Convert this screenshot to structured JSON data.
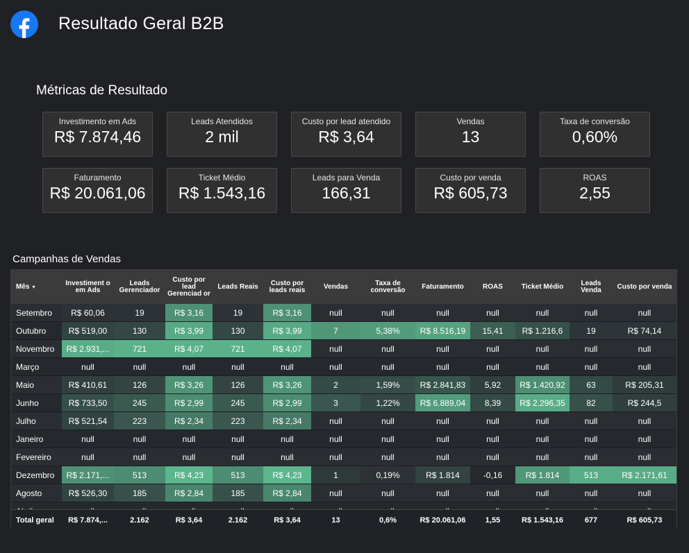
{
  "header": {
    "title": "Resultado Geral B2B",
    "logo_icon": "facebook-logo-icon"
  },
  "metrics": {
    "section_title": "Métricas de Resultado",
    "cards": [
      {
        "label": "Investimento em Ads",
        "value": "R$ 7.874,46"
      },
      {
        "label": "Leads Atendidos",
        "value": "2 mil"
      },
      {
        "label": "Custo por lead atendido",
        "value": "R$ 3,64"
      },
      {
        "label": "Vendas",
        "value": "13"
      },
      {
        "label": "Taxa de conversão",
        "value": "0,60%"
      },
      {
        "label": "Faturamento",
        "value": "R$ 20.061,06"
      },
      {
        "label": "Ticket Médio",
        "value": "R$ 1.543,16"
      },
      {
        "label": "Leads para Venda",
        "value": "166,31"
      },
      {
        "label": "Custo por venda",
        "value": "R$ 605,73"
      },
      {
        "label": "ROAS",
        "value": "2,55"
      }
    ]
  },
  "table": {
    "title": "Campanhas de Vendas",
    "sort_indicator": "▾",
    "columns": [
      "Mês",
      "Investiment o em Ads",
      "Leads Gerenciador",
      "Custo por lead Gerenciad or",
      "Leads Reais",
      "Custo por leads reais",
      "Vendas",
      "Taxa de conversão",
      "Faturamento",
      "ROAS",
      "Ticket Médio",
      "Leads Venda",
      "Custo por venda"
    ],
    "heat_color": "#5cb88f",
    "rows": [
      {
        "cells": [
          "Setembro",
          "R$ 60,06",
          "19",
          "R$ 3,16",
          "19",
          "R$ 3,16",
          "null",
          "null",
          "null",
          "null",
          "null",
          "null",
          "null"
        ],
        "heat": [
          0,
          0.02,
          0.03,
          0.72,
          0.03,
          0.72,
          0,
          0,
          0,
          0,
          0,
          0,
          0
        ]
      },
      {
        "cells": [
          "Outubro",
          "R$ 519,00",
          "130",
          "R$ 3,99",
          "130",
          "R$ 3,99",
          "7",
          "5,38%",
          "R$ 8.516,19",
          "15,41",
          "R$ 1.216,6",
          "19",
          "R$ 74,14"
        ],
        "heat": [
          0,
          0.16,
          0.18,
          0.9,
          0.18,
          0.9,
          0.75,
          0.8,
          0.85,
          0.35,
          0.25,
          0.05,
          0.05
        ]
      },
      {
        "cells": [
          "Novembro",
          "R$ 2.931,...",
          "721",
          "R$ 4,07",
          "721",
          "R$ 4,07",
          "null",
          "null",
          "null",
          "null",
          "null",
          "null",
          "null"
        ],
        "heat": [
          0,
          0.92,
          0.95,
          0.95,
          0.95,
          0.95,
          0,
          0,
          0,
          0,
          0,
          0,
          0
        ]
      },
      {
        "cells": [
          "Março",
          "null",
          "null",
          "null",
          "null",
          "null",
          "null",
          "null",
          "null",
          "null",
          "null",
          "null",
          "null"
        ],
        "heat": [
          0,
          0,
          0,
          0,
          0,
          0,
          0,
          0,
          0,
          0,
          0,
          0,
          0
        ]
      },
      {
        "cells": [
          "Maio",
          "R$ 410,61",
          "126",
          "R$ 3,26",
          "126",
          "R$ 3,26",
          "2",
          "1,59%",
          "R$ 2.841,83",
          "5,92",
          "R$ 1.420,92",
          "63",
          "R$ 205,31"
        ],
        "heat": [
          0,
          0.13,
          0.17,
          0.74,
          0.17,
          0.74,
          0.2,
          0.22,
          0.28,
          0.12,
          0.7,
          0.2,
          0.1
        ]
      },
      {
        "cells": [
          "Junho",
          "R$ 733,50",
          "245",
          "R$ 2,99",
          "245",
          "R$ 2,99",
          "3",
          "1,22%",
          "R$ 6.889,04",
          "8,39",
          "R$ 2.296,35",
          "82",
          "R$ 244,5"
        ],
        "heat": [
          0,
          0.24,
          0.32,
          0.68,
          0.32,
          0.68,
          0.3,
          0.18,
          0.8,
          0.2,
          0.92,
          0.25,
          0.12
        ]
      },
      {
        "cells": [
          "Julho",
          "R$ 521,54",
          "223",
          "R$ 2,34",
          "223",
          "R$ 2,34",
          "null",
          "null",
          "null",
          "null",
          "null",
          "null",
          "null"
        ],
        "heat": [
          0,
          0.16,
          0.3,
          0.55,
          0.3,
          0.55,
          0,
          0,
          0,
          0,
          0,
          0,
          0
        ]
      },
      {
        "cells": [
          "Janeiro",
          "null",
          "null",
          "null",
          "null",
          "null",
          "null",
          "null",
          "null",
          "null",
          "null",
          "null",
          "null"
        ],
        "heat": [
          0,
          0,
          0,
          0,
          0,
          0,
          0,
          0,
          0,
          0,
          0,
          0,
          0
        ]
      },
      {
        "cells": [
          "Fevereiro",
          "null",
          "null",
          "null",
          "null",
          "null",
          "null",
          "null",
          "null",
          "null",
          "null",
          "null",
          "null"
        ],
        "heat": [
          0,
          0,
          0,
          0,
          0,
          0,
          0,
          0,
          0,
          0,
          0,
          0,
          0
        ]
      },
      {
        "cells": [
          "Dezembro",
          "R$ 2.171,...",
          "513",
          "R$ 4,23",
          "513",
          "R$ 4,23",
          "1",
          "0,19%",
          "R$ 1.814",
          "-0,16",
          "R$ 1.814",
          "513",
          "R$ 2.171,61"
        ],
        "heat": [
          0,
          0.72,
          0.68,
          0.98,
          0.68,
          0.98,
          0.08,
          0.03,
          0.15,
          0,
          0.75,
          0.92,
          0.92
        ]
      },
      {
        "cells": [
          "Agosto",
          "R$ 526,30",
          "185",
          "R$ 2,84",
          "185",
          "R$ 2,84",
          "null",
          "null",
          "null",
          "null",
          "null",
          "null",
          "null"
        ],
        "heat": [
          0,
          0.16,
          0.25,
          0.64,
          0.25,
          0.64,
          0,
          0,
          0,
          0,
          0,
          0,
          0
        ]
      },
      {
        "cells": [
          "Abril",
          "null",
          "null",
          "null",
          "null",
          "null",
          "null",
          "null",
          "null",
          "null",
          "null",
          "null",
          "null"
        ],
        "heat": [
          0,
          0,
          0,
          0,
          0,
          0,
          0,
          0,
          0,
          0,
          0,
          0,
          0
        ]
      }
    ],
    "totals": [
      "Total geral",
      "R$ 7.874,...",
      "2.162",
      "R$ 3,64",
      "2.162",
      "R$ 3,64",
      "13",
      "0,6%",
      "R$ 20.061,06",
      "1,55",
      "R$ 1.543,16",
      "677",
      "R$ 605,73"
    ]
  }
}
